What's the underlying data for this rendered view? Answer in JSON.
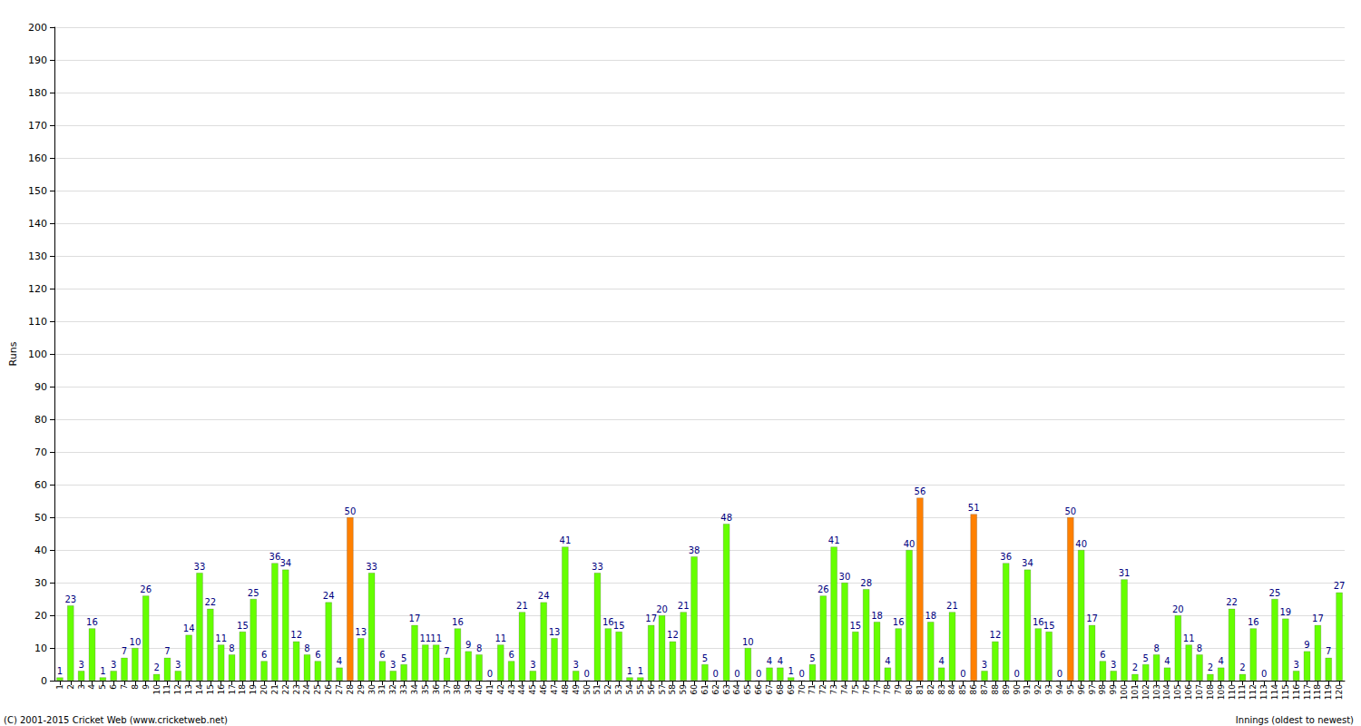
{
  "chart_data": {
    "type": "bar",
    "y_label": "Runs",
    "x_label": "Innings (oldest to newest)",
    "footer": "(C) 2001-2015 Cricket Web (www.cricketweb.net)",
    "categories": [
      "1",
      "2",
      "3",
      "4",
      "5",
      "6",
      "7",
      "8",
      "9",
      "10",
      "11",
      "12",
      "13",
      "14",
      "15",
      "16",
      "17",
      "18",
      "19",
      "20",
      "21",
      "22",
      "23",
      "24",
      "25",
      "26",
      "27",
      "28",
      "29",
      "30",
      "31",
      "32",
      "33",
      "34",
      "35",
      "36",
      "37",
      "38",
      "39",
      "40",
      "41",
      "42",
      "43",
      "44",
      "45",
      "46",
      "47",
      "48",
      "49",
      "50",
      "51",
      "52",
      "53",
      "54",
      "55",
      "56",
      "57",
      "58",
      "59",
      "60",
      "61",
      "62",
      "63",
      "64",
      "65",
      "66",
      "67",
      "68",
      "69",
      "70",
      "71",
      "72",
      "73",
      "74",
      "75",
      "76",
      "77",
      "78",
      "79",
      "80",
      "81",
      "82",
      "83",
      "84",
      "85",
      "86",
      "87",
      "88",
      "89",
      "90",
      "91",
      "92",
      "93",
      "94",
      "95",
      "96",
      "97",
      "98",
      "99",
      "100",
      "101",
      "102",
      "103",
      "104",
      "105",
      "106",
      "107",
      "108",
      "109",
      "110",
      "111",
      "112",
      "113",
      "114",
      "115",
      "116",
      "117",
      "118",
      "119",
      "120"
    ],
    "values": [
      1,
      23,
      3,
      16,
      1,
      3,
      7,
      10,
      26,
      2,
      7,
      3,
      14,
      33,
      22,
      11,
      8,
      15,
      25,
      6,
      36,
      34,
      12,
      8,
      6,
      24,
      4,
      50,
      13,
      33,
      6,
      3,
      5,
      17,
      11,
      11,
      7,
      16,
      9,
      8,
      0,
      11,
      6,
      21,
      3,
      24,
      13,
      41,
      3,
      0,
      33,
      16,
      15,
      1,
      1,
      17,
      20,
      12,
      21,
      38,
      5,
      0,
      48,
      0,
      10,
      0,
      4,
      4,
      1,
      0,
      5,
      26,
      41,
      30,
      15,
      28,
      18,
      4,
      16,
      40,
      56,
      18,
      4,
      21,
      0,
      51,
      3,
      12,
      36,
      0,
      34,
      16,
      15,
      0,
      50,
      40,
      17,
      6,
      3,
      31,
      2,
      5,
      8,
      4,
      20,
      11,
      8,
      2,
      4,
      22,
      2,
      16,
      0,
      25,
      19,
      3,
      9,
      17,
      7,
      27
    ],
    "colors": [
      "#66ff00",
      "#66ff00",
      "#66ff00",
      "#66ff00",
      "#66ff00",
      "#66ff00",
      "#66ff00",
      "#66ff00",
      "#66ff00",
      "#66ff00",
      "#66ff00",
      "#66ff00",
      "#66ff00",
      "#66ff00",
      "#66ff00",
      "#66ff00",
      "#66ff00",
      "#66ff00",
      "#66ff00",
      "#66ff00",
      "#66ff00",
      "#66ff00",
      "#66ff00",
      "#66ff00",
      "#66ff00",
      "#66ff00",
      "#66ff00",
      "#ff8000",
      "#66ff00",
      "#66ff00",
      "#66ff00",
      "#66ff00",
      "#66ff00",
      "#66ff00",
      "#66ff00",
      "#66ff00",
      "#66ff00",
      "#66ff00",
      "#66ff00",
      "#66ff00",
      "#66ff00",
      "#66ff00",
      "#66ff00",
      "#66ff00",
      "#66ff00",
      "#66ff00",
      "#66ff00",
      "#66ff00",
      "#66ff00",
      "#66ff00",
      "#66ff00",
      "#66ff00",
      "#66ff00",
      "#66ff00",
      "#66ff00",
      "#66ff00",
      "#66ff00",
      "#66ff00",
      "#66ff00",
      "#66ff00",
      "#66ff00",
      "#66ff00",
      "#66ff00",
      "#66ff00",
      "#66ff00",
      "#66ff00",
      "#66ff00",
      "#66ff00",
      "#66ff00",
      "#66ff00",
      "#66ff00",
      "#66ff00",
      "#66ff00",
      "#66ff00",
      "#66ff00",
      "#66ff00",
      "#66ff00",
      "#66ff00",
      "#66ff00",
      "#66ff00",
      "#ff8000",
      "#66ff00",
      "#66ff00",
      "#66ff00",
      "#66ff00",
      "#ff8000",
      "#66ff00",
      "#66ff00",
      "#66ff00",
      "#66ff00",
      "#66ff00",
      "#66ff00",
      "#66ff00",
      "#66ff00",
      "#ff8000",
      "#66ff00",
      "#66ff00",
      "#66ff00",
      "#66ff00",
      "#66ff00",
      "#66ff00",
      "#66ff00",
      "#66ff00",
      "#66ff00",
      "#66ff00",
      "#66ff00",
      "#66ff00",
      "#66ff00",
      "#66ff00",
      "#66ff00",
      "#66ff00",
      "#66ff00",
      "#66ff00",
      "#66ff00",
      "#66ff00",
      "#66ff00",
      "#66ff00",
      "#66ff00",
      "#66ff00",
      "#66ff00"
    ],
    "ylim": [
      0,
      200
    ],
    "yticks": [
      0,
      10,
      20,
      30,
      40,
      50,
      60,
      70,
      80,
      90,
      100,
      110,
      120,
      130,
      140,
      150,
      160,
      170,
      180,
      190,
      200
    ],
    "grid": true,
    "data_labels": true
  }
}
